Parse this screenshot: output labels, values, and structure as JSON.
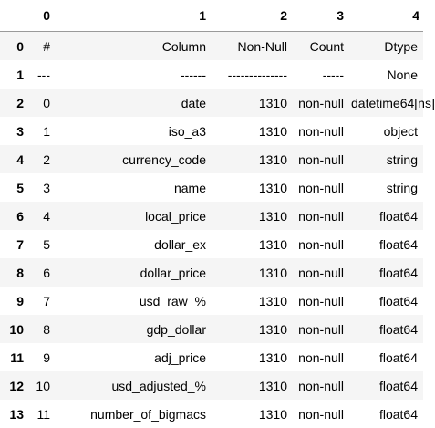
{
  "table": {
    "columns": [
      "",
      "0",
      "1",
      "2",
      "3",
      "4"
    ],
    "rows": [
      [
        "0",
        "#",
        "Column",
        "Non-Null",
        "Count",
        "Dtype"
      ],
      [
        "1",
        "---",
        "------",
        "--------------",
        "-----",
        "None"
      ],
      [
        "2",
        "0",
        "date",
        "1310",
        "non-null",
        "datetime64[ns]"
      ],
      [
        "3",
        "1",
        "iso_a3",
        "1310",
        "non-null",
        "object"
      ],
      [
        "4",
        "2",
        "currency_code",
        "1310",
        "non-null",
        "string"
      ],
      [
        "5",
        "3",
        "name",
        "1310",
        "non-null",
        "string"
      ],
      [
        "6",
        "4",
        "local_price",
        "1310",
        "non-null",
        "float64"
      ],
      [
        "7",
        "5",
        "dollar_ex",
        "1310",
        "non-null",
        "float64"
      ],
      [
        "8",
        "6",
        "dollar_price",
        "1310",
        "non-null",
        "float64"
      ],
      [
        "9",
        "7",
        "usd_raw_%",
        "1310",
        "non-null",
        "float64"
      ],
      [
        "10",
        "8",
        "gdp_dollar",
        "1310",
        "non-null",
        "float64"
      ],
      [
        "11",
        "9",
        "adj_price",
        "1310",
        "non-null",
        "float64"
      ],
      [
        "12",
        "10",
        "usd_adjusted_%",
        "1310",
        "non-null",
        "float64"
      ],
      [
        "13",
        "11",
        "number_of_bigmacs",
        "1310",
        "non-null",
        "float64"
      ]
    ]
  }
}
